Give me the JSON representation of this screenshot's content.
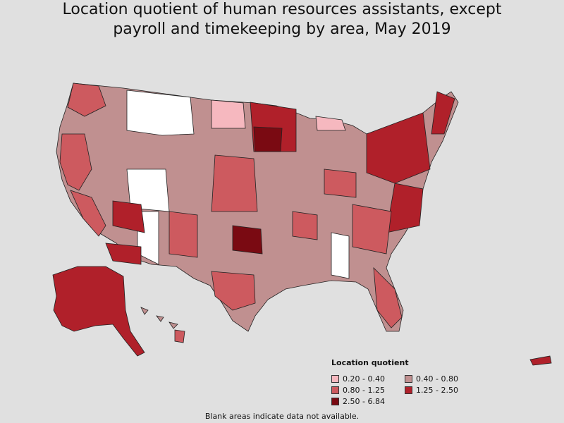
{
  "title_line1": "Location quotient of human resources assistants, except",
  "title_line2": "payroll and timekeeping by area, May 2019",
  "legend": {
    "title": "Location quotient",
    "items": [
      {
        "label": "0.20 - 0.40",
        "color": "#f6b8bf"
      },
      {
        "label": "0.40 - 0.80",
        "color": "#c09090"
      },
      {
        "label": "0.80 - 1.25",
        "color": "#cd5a5f"
      },
      {
        "label": "1.25 - 2.50",
        "color": "#b0202a"
      },
      {
        "label": "2.50 - 6.84",
        "color": "#7a0a12"
      }
    ]
  },
  "footnote": "Blank areas indicate data not available.",
  "colors": {
    "background": "#e0e0e0",
    "no_data": "#ffffff",
    "border": "#222222"
  }
}
